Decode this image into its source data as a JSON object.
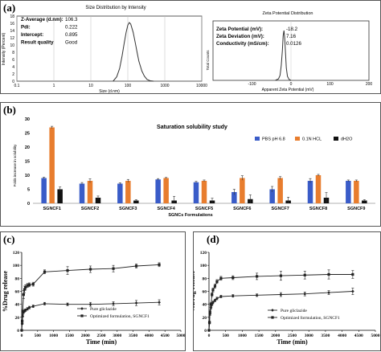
{
  "panel_a": {
    "label": "(a)",
    "size": {
      "title": "Size Distribution by Intensity",
      "stats": [
        {
          "label": "Z-Average (d.nm):",
          "value": "106.3"
        },
        {
          "label": "Pdi:",
          "value": "0.222"
        },
        {
          "label": "Intercept:",
          "value": "0.895"
        },
        {
          "label": "Result quality",
          "value": "Good"
        }
      ]
    },
    "zeta": {
      "title": "Zeta Potential Distribution",
      "stats": [
        {
          "label": "Zeta Potential (mV):",
          "value": "-18.2"
        },
        {
          "label": "Zeta Deviation (mV):",
          "value": "7.16"
        },
        {
          "label": "Conductivity (mS/cm):",
          "value": "0.0126"
        }
      ]
    }
  },
  "panel_b": {
    "label": "(b)"
  },
  "panel_c": {
    "label": "(c)"
  },
  "panel_d": {
    "label": "(d)"
  },
  "chart_data": [
    {
      "id": "a-size",
      "type": "line",
      "title": "Size Distribution by Intensity",
      "xlabel": "Size (d.nm)",
      "ylabel": "Intensity (Percent)",
      "xscale": "log",
      "xlim": [
        0.1,
        10000
      ],
      "ylim": [
        0,
        18
      ],
      "x_ticks": [
        "0.1",
        "1",
        "10",
        "100",
        "1000",
        "10000"
      ],
      "y_ticks": [
        "0",
        "2",
        "4",
        "6",
        "8",
        "10",
        "12",
        "14",
        "16",
        "18"
      ],
      "series": [
        {
          "x": [
            40,
            50,
            60,
            70,
            80,
            90,
            100,
            110,
            120,
            140,
            160,
            180,
            200,
            240,
            280,
            330,
            400,
            500
          ],
          "y": [
            0,
            1.2,
            3.5,
            7,
            10.5,
            13.5,
            15.5,
            16.2,
            15.8,
            13.5,
            10.5,
            7.8,
            5.5,
            2.8,
            1.4,
            0.5,
            0.1,
            0
          ]
        }
      ],
      "grid": false
    },
    {
      "id": "a-zeta",
      "type": "line",
      "title": "Zeta Potential Distribution",
      "xlabel": "Apparent Zeta Potential (mV)",
      "ylabel": "Total Counts",
      "xlim": [
        -200,
        200
      ],
      "x_ticks": [
        "-100",
        "0",
        "100",
        "200"
      ],
      "series": [
        {
          "x": [
            -40,
            -32,
            -28,
            -25,
            -22,
            -20,
            -18,
            -16,
            -14,
            -12,
            -9,
            -5,
            0
          ],
          "y": [
            0,
            0.03,
            0.1,
            0.3,
            0.6,
            0.9,
            1.0,
            0.85,
            0.55,
            0.25,
            0.08,
            0.02,
            0
          ]
        }
      ],
      "grid": false
    },
    {
      "id": "b-solubility",
      "type": "bar",
      "title": "Saturation solubility study",
      "xlabel": "SGNCs Formulations",
      "ylabel": "Folds increase in solubility",
      "ylim": [
        0,
        30
      ],
      "y_ticks": [
        "0",
        "5",
        "10",
        "15",
        "20",
        "25",
        "30"
      ],
      "categories": [
        "SGNCF1",
        "SGNCF2",
        "SGNCF3",
        "SGNCF4",
        "SGNCF5",
        "SGNCF6",
        "SGNCF7",
        "SGNCF8",
        "SGNCF9"
      ],
      "series": [
        {
          "name": "PBS pH 6.8",
          "color": "#3a5cc8",
          "values": [
            9,
            7,
            7,
            8.5,
            7.5,
            4,
            5,
            8,
            8
          ],
          "errors": [
            0.3,
            0.4,
            0.3,
            0.3,
            0.3,
            1.0,
            1.0,
            0.8,
            0.3
          ]
        },
        {
          "name": "0.1N HCL",
          "color": "#e87d2e",
          "values": [
            27,
            8,
            8,
            9,
            8,
            9,
            9,
            10,
            8
          ],
          "errors": [
            0.4,
            0.7,
            0.5,
            0.2,
            0.3,
            0.8,
            0.5,
            0.3,
            0.3
          ]
        },
        {
          "name": "dH2O",
          "color": "#111111",
          "values": [
            5,
            2,
            1,
            1,
            1,
            1.5,
            1,
            2,
            1
          ],
          "errors": [
            0.8,
            0.6,
            0.3,
            1.5,
            0.8,
            1.5,
            1.2,
            1.8,
            0.3
          ]
        }
      ],
      "legend": "top-right"
    },
    {
      "id": "c-release",
      "type": "line",
      "xlabel": "Time (min)",
      "ylabel": "%Drug release",
      "xlim": [
        0,
        5000
      ],
      "ylim": [
        0,
        120
      ],
      "x_ticks": [
        "0",
        "500",
        "1000",
        "1500",
        "2000",
        "2500",
        "3000",
        "3500",
        "4000",
        "4500",
        "5000"
      ],
      "y_ticks": [
        "0",
        "20",
        "40",
        "60",
        "80",
        "100",
        "120"
      ],
      "series": [
        {
          "name": "Pure gliclazide",
          "marker": "diamond",
          "x": [
            0,
            15,
            30,
            60,
            90,
            120,
            180,
            240,
            360,
            720,
            1440,
            2160,
            2880,
            3600,
            4320
          ],
          "y": [
            0,
            10,
            22,
            28,
            30,
            31,
            33,
            35,
            37,
            41,
            40,
            40,
            41,
            42,
            43
          ],
          "errors": [
            0,
            1,
            2,
            2,
            2,
            2,
            2,
            2,
            2,
            2,
            2,
            3,
            3,
            4,
            4
          ]
        },
        {
          "name": "Optimized formulation, SGNCF1",
          "marker": "square",
          "x": [
            0,
            15,
            30,
            60,
            90,
            120,
            180,
            240,
            360,
            720,
            1440,
            2160,
            2880,
            3600,
            4320
          ],
          "y": [
            0,
            14,
            29,
            55,
            63,
            66,
            69,
            70,
            71,
            90,
            92,
            94,
            95,
            99,
            101
          ],
          "errors": [
            0,
            2,
            3,
            6,
            5,
            4,
            3,
            3,
            3,
            3,
            6,
            5,
            5,
            3,
            3
          ]
        }
      ],
      "legend": "bottom-center"
    },
    {
      "id": "d-release",
      "type": "line",
      "xlabel": "Time (min)",
      "ylabel": "%Drug release",
      "xlim": [
        0,
        5000
      ],
      "ylim": [
        0,
        120
      ],
      "x_ticks": [
        "0",
        "500",
        "1000",
        "1500",
        "2000",
        "2500",
        "3000",
        "3500",
        "4000",
        "4500",
        "5000"
      ],
      "y_ticks": [
        "0",
        "20",
        "40",
        "60",
        "80",
        "100",
        "120"
      ],
      "series": [
        {
          "name": "Pure gliclazide",
          "marker": "diamond",
          "x": [
            0,
            15,
            30,
            60,
            90,
            120,
            180,
            240,
            360,
            720,
            1440,
            2160,
            2880,
            3600,
            4320
          ],
          "y": [
            0,
            12,
            25,
            35,
            40,
            43,
            46,
            49,
            52,
            53,
            54,
            55,
            56,
            58,
            60
          ],
          "errors": [
            0,
            2,
            2,
            2,
            2,
            2,
            2,
            2,
            2,
            2,
            2,
            3,
            3,
            3,
            5
          ]
        },
        {
          "name": "Optimized formulation, SGNCF1",
          "marker": "square",
          "x": [
            0,
            15,
            30,
            60,
            90,
            120,
            180,
            240,
            360,
            720,
            1440,
            2160,
            2880,
            3600,
            4320
          ],
          "y": [
            0,
            12,
            28,
            40,
            55,
            62,
            68,
            75,
            80,
            81,
            83,
            84,
            85,
            86,
            86
          ],
          "errors": [
            0,
            2,
            3,
            3,
            3,
            3,
            3,
            3,
            3,
            3,
            5,
            7,
            6,
            7,
            6
          ]
        }
      ],
      "legend": "bottom-center"
    }
  ]
}
